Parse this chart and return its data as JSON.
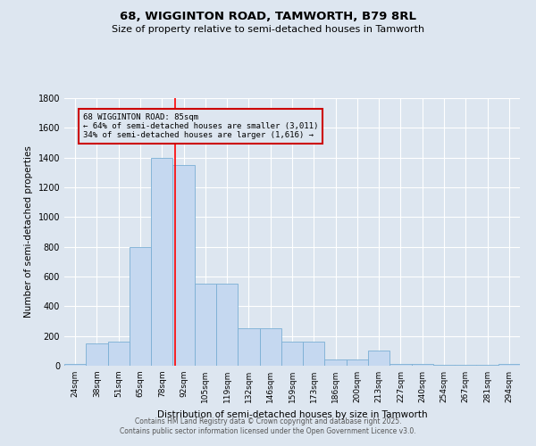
{
  "title1": "68, WIGGINTON ROAD, TAMWORTH, B79 8RL",
  "title2": "Size of property relative to semi-detached houses in Tamworth",
  "xlabel": "Distribution of semi-detached houses by size in Tamworth",
  "ylabel": "Number of semi-detached properties",
  "categories": [
    "24sqm",
    "38sqm",
    "51sqm",
    "65sqm",
    "78sqm",
    "92sqm",
    "105sqm",
    "119sqm",
    "132sqm",
    "146sqm",
    "159sqm",
    "173sqm",
    "186sqm",
    "200sqm",
    "213sqm",
    "227sqm",
    "240sqm",
    "254sqm",
    "267sqm",
    "281sqm",
    "294sqm"
  ],
  "values": [
    10,
    150,
    160,
    800,
    1400,
    1350,
    550,
    550,
    250,
    250,
    160,
    160,
    40,
    40,
    100,
    10,
    10,
    5,
    5,
    5,
    10
  ],
  "bar_color": "#c5d8f0",
  "bar_edge_color": "#7aafd4",
  "bg_color": "#dde6f0",
  "grid_color": "#ffffff",
  "red_line_x": 4.62,
  "property_label": "68 WIGGINTON ROAD: 85sqm",
  "smaller_text": "← 64% of semi-detached houses are smaller (3,011)",
  "larger_text": "34% of semi-detached houses are larger (1,616) →",
  "annotation_box_color": "#cc0000",
  "ylim": [
    0,
    1800
  ],
  "yticks": [
    0,
    200,
    400,
    600,
    800,
    1000,
    1200,
    1400,
    1600,
    1800
  ],
  "footer1": "Contains HM Land Registry data © Crown copyright and database right 2025.",
  "footer2": "Contains public sector information licensed under the Open Government Licence v3.0."
}
